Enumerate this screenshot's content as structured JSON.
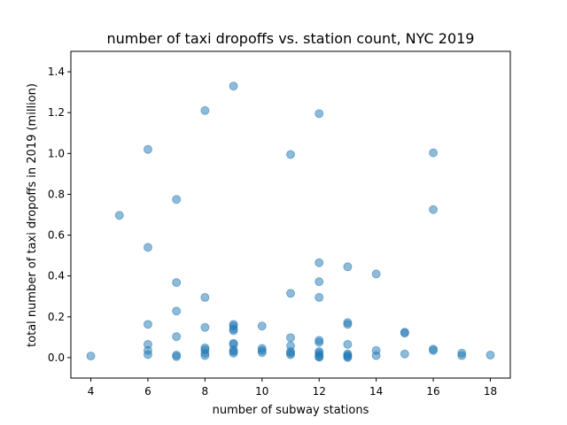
{
  "chart_data": {
    "type": "scatter",
    "title": "number of taxi dropoffs vs. station count, NYC 2019",
    "xlabel": "number of subway stations",
    "ylabel": "total number of taxi dropoffs in 2019 (million)",
    "xlim": [
      3.3,
      18.7
    ],
    "ylim": [
      -0.1,
      1.5
    ],
    "xticks": [
      4,
      6,
      8,
      10,
      12,
      14,
      16,
      18
    ],
    "yticks": [
      0.0,
      0.2,
      0.4,
      0.6,
      0.8,
      1.0,
      1.2,
      1.4
    ],
    "xtick_labels": [
      "4",
      "6",
      "8",
      "10",
      "12",
      "14",
      "16",
      "18"
    ],
    "ytick_labels": [
      "0.0",
      "0.2",
      "0.4",
      "0.6",
      "0.8",
      "1.0",
      "1.2",
      "1.4"
    ],
    "point_color": "#1f77b4",
    "points": [
      {
        "x": 4,
        "y": 0.008
      },
      {
        "x": 5,
        "y": 0.697
      },
      {
        "x": 6,
        "y": 1.02
      },
      {
        "x": 6,
        "y": 0.54
      },
      {
        "x": 6,
        "y": 0.163
      },
      {
        "x": 6,
        "y": 0.065
      },
      {
        "x": 6,
        "y": 0.035
      },
      {
        "x": 6,
        "y": 0.015
      },
      {
        "x": 7,
        "y": 0.775
      },
      {
        "x": 7,
        "y": 0.368
      },
      {
        "x": 7,
        "y": 0.228
      },
      {
        "x": 7,
        "y": 0.103
      },
      {
        "x": 7,
        "y": 0.013
      },
      {
        "x": 7,
        "y": 0.005
      },
      {
        "x": 8,
        "y": 1.21
      },
      {
        "x": 8,
        "y": 0.295
      },
      {
        "x": 8,
        "y": 0.148
      },
      {
        "x": 8,
        "y": 0.048
      },
      {
        "x": 8,
        "y": 0.038
      },
      {
        "x": 8,
        "y": 0.022
      },
      {
        "x": 8,
        "y": 0.01
      },
      {
        "x": 9,
        "y": 1.33
      },
      {
        "x": 9,
        "y": 0.163
      },
      {
        "x": 9,
        "y": 0.155
      },
      {
        "x": 9,
        "y": 0.14
      },
      {
        "x": 9,
        "y": 0.132
      },
      {
        "x": 9,
        "y": 0.07
      },
      {
        "x": 9,
        "y": 0.065
      },
      {
        "x": 9,
        "y": 0.038
      },
      {
        "x": 9,
        "y": 0.03
      },
      {
        "x": 9,
        "y": 0.022
      },
      {
        "x": 10,
        "y": 0.155
      },
      {
        "x": 10,
        "y": 0.045
      },
      {
        "x": 10,
        "y": 0.035
      },
      {
        "x": 10,
        "y": 0.025
      },
      {
        "x": 11,
        "y": 0.995
      },
      {
        "x": 11,
        "y": 0.315
      },
      {
        "x": 11,
        "y": 0.098
      },
      {
        "x": 11,
        "y": 0.058
      },
      {
        "x": 11,
        "y": 0.03
      },
      {
        "x": 11,
        "y": 0.022
      },
      {
        "x": 11,
        "y": 0.015
      },
      {
        "x": 12,
        "y": 1.195
      },
      {
        "x": 12,
        "y": 0.465
      },
      {
        "x": 12,
        "y": 0.372
      },
      {
        "x": 12,
        "y": 0.295
      },
      {
        "x": 12,
        "y": 0.085
      },
      {
        "x": 12,
        "y": 0.075
      },
      {
        "x": 12,
        "y": 0.03
      },
      {
        "x": 12,
        "y": 0.022
      },
      {
        "x": 12,
        "y": 0.012
      },
      {
        "x": 12,
        "y": 0.005
      },
      {
        "x": 12,
        "y": 0.002
      },
      {
        "x": 13,
        "y": 0.445
      },
      {
        "x": 13,
        "y": 0.172
      },
      {
        "x": 13,
        "y": 0.163
      },
      {
        "x": 13,
        "y": 0.065
      },
      {
        "x": 13,
        "y": 0.018
      },
      {
        "x": 13,
        "y": 0.012
      },
      {
        "x": 13,
        "y": 0.005
      },
      {
        "x": 13,
        "y": 0.001
      },
      {
        "x": 14,
        "y": 0.41
      },
      {
        "x": 14,
        "y": 0.035
      },
      {
        "x": 14,
        "y": 0.01
      },
      {
        "x": 15,
        "y": 0.125
      },
      {
        "x": 15,
        "y": 0.12
      },
      {
        "x": 15,
        "y": 0.018
      },
      {
        "x": 16,
        "y": 1.003
      },
      {
        "x": 16,
        "y": 0.725
      },
      {
        "x": 16,
        "y": 0.042
      },
      {
        "x": 16,
        "y": 0.035
      },
      {
        "x": 17,
        "y": 0.022
      },
      {
        "x": 17,
        "y": 0.01
      },
      {
        "x": 18,
        "y": 0.013
      }
    ]
  }
}
